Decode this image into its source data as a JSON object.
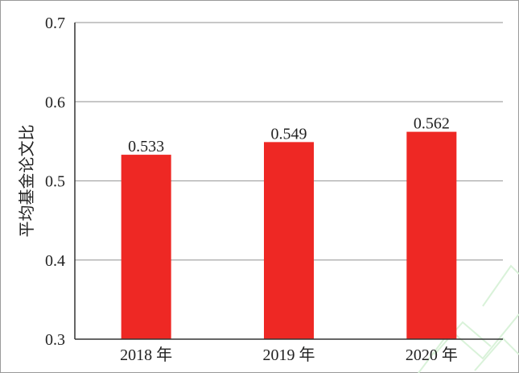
{
  "chart_data": {
    "type": "bar",
    "categories": [
      "2018 年",
      "2019 年",
      "2020 年"
    ],
    "values": [
      0.533,
      0.549,
      0.562
    ],
    "data_labels": [
      "0.533",
      "0.549",
      "0.562"
    ],
    "title": "",
    "xlabel": "",
    "ylabel": "平均基金论文比",
    "ylim": [
      0.3,
      0.7
    ],
    "yticks": [
      0.3,
      0.4,
      0.5,
      0.6,
      0.7
    ],
    "ytick_labels": [
      "0.3",
      "0.4",
      "0.5",
      "0.6",
      "0.7"
    ],
    "grid": true,
    "legend": "none",
    "colors": {
      "bar": "#ee2824",
      "grid": "#a6a6a6",
      "axis": "#333333",
      "text": "#222222"
    }
  }
}
